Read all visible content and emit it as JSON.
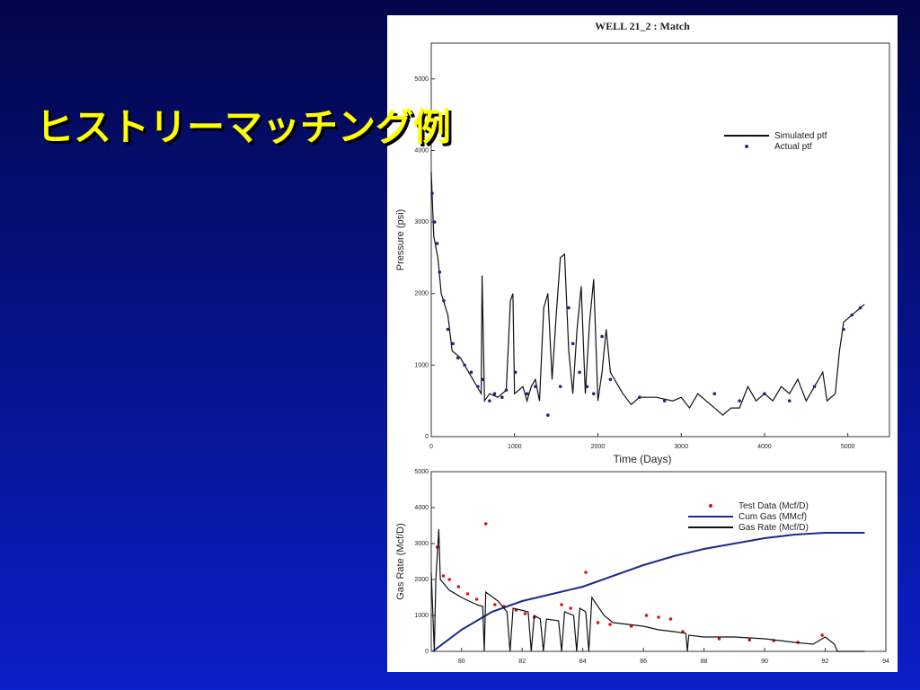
{
  "slide": {
    "title": "ヒストリーマッチング例"
  },
  "chart_data": [
    {
      "type": "line",
      "title": "WELL 21_2 : Match",
      "xlabel": "Time (Days)",
      "ylabel": "Pressure (psi)",
      "xlim": [
        0,
        5500
      ],
      "xticks": [
        0,
        1000,
        2000,
        3000,
        4000,
        5000
      ],
      "ylim": [
        0,
        5500
      ],
      "yticks": [
        0,
        1000,
        2000,
        3000,
        4000,
        5000
      ],
      "grid": false,
      "legend": "upper right",
      "series": [
        {
          "name": "Simulated ptf",
          "type": "line",
          "color": "#111111",
          "x": [
            0,
            30,
            80,
            120,
            200,
            250,
            350,
            450,
            550,
            600,
            610,
            640,
            700,
            800,
            900,
            950,
            980,
            1000,
            1100,
            1150,
            1200,
            1250,
            1300,
            1350,
            1400,
            1450,
            1500,
            1550,
            1600,
            1650,
            1700,
            1750,
            1800,
            1850,
            1900,
            1950,
            2000,
            2050,
            2100,
            2150,
            2200,
            2300,
            2400,
            2500,
            2700,
            2900,
            3000,
            3100,
            3200,
            3300,
            3400,
            3500,
            3600,
            3700,
            3800,
            3900,
            4000,
            4100,
            4200,
            4300,
            4400,
            4500,
            4600,
            4700,
            4750,
            4850,
            4900,
            4950,
            5050,
            5200
          ],
          "values": [
            3700,
            2800,
            2500,
            2000,
            1700,
            1200,
            1100,
            900,
            700,
            600,
            2250,
            500,
            600,
            550,
            650,
            1900,
            2000,
            600,
            700,
            500,
            700,
            800,
            500,
            1800,
            2000,
            800,
            1700,
            2500,
            2550,
            1200,
            600,
            1500,
            2100,
            600,
            1600,
            2200,
            500,
            900,
            1500,
            900,
            800,
            600,
            450,
            550,
            550,
            500,
            550,
            400,
            600,
            500,
            400,
            300,
            400,
            400,
            700,
            500,
            600,
            500,
            700,
            600,
            800,
            500,
            700,
            900,
            500,
            600,
            1200,
            1600,
            1700,
            1850
          ]
        },
        {
          "name": "Actual ptf",
          "type": "scatter",
          "color": "#1a2a80",
          "x": [
            10,
            40,
            70,
            100,
            150,
            200,
            260,
            320,
            400,
            480,
            560,
            620,
            700,
            760,
            850,
            900,
            1010,
            1150,
            1250,
            1400,
            1550,
            1650,
            1700,
            1780,
            1870,
            1950,
            2050,
            2150,
            2500,
            2800,
            3400,
            3700,
            4000,
            4300,
            4600,
            4950,
            5050,
            5150
          ],
          "values": [
            3400,
            3000,
            2700,
            2300,
            1900,
            1500,
            1300,
            1100,
            1000,
            900,
            700,
            800,
            500,
            600,
            550,
            650,
            900,
            600,
            700,
            300,
            700,
            1800,
            1300,
            900,
            700,
            600,
            1400,
            800,
            550,
            500,
            600,
            500,
            600,
            500,
            700,
            1500,
            1700,
            1800
          ]
        }
      ]
    },
    {
      "type": "line",
      "ylabel": "Gas Rate (Mcf/D)",
      "xlim": [
        79,
        94
      ],
      "xticks": [
        80,
        82,
        84,
        86,
        88,
        90,
        92,
        94
      ],
      "ylim": [
        0,
        5000
      ],
      "yticks": [
        0,
        1000,
        2000,
        3000,
        4000,
        5000
      ],
      "grid": false,
      "legend": "upper right",
      "series": [
        {
          "name": "Test Data (Mcf/D)",
          "type": "scatter",
          "color": "#e01010",
          "x": [
            79.2,
            79.4,
            79.6,
            79.9,
            80.2,
            80.5,
            80.8,
            81.1,
            81.4,
            81.8,
            82.1,
            82.4,
            83.3,
            83.6,
            84.1,
            84.5,
            84.9,
            85.6,
            86.1,
            86.5,
            86.9,
            87.3,
            88.5,
            89.5,
            90.3,
            91.1,
            91.9
          ],
          "values": [
            2900,
            2100,
            2000,
            1800,
            1600,
            1450,
            3550,
            1300,
            1250,
            1150,
            1050,
            950,
            1300,
            1200,
            2200,
            800,
            750,
            700,
            1000,
            950,
            900,
            550,
            350,
            320,
            300,
            250,
            450
          ]
        },
        {
          "name": "Cum Gas (MMcf)",
          "type": "line",
          "color": "#1a2a90",
          "x": [
            79.05,
            80,
            81,
            82,
            83,
            84,
            85,
            86,
            87,
            88,
            89,
            90,
            91,
            92,
            92.4,
            93.3
          ],
          "values": [
            0,
            600,
            1100,
            1400,
            1600,
            1800,
            2100,
            2400,
            2650,
            2850,
            3000,
            3150,
            3250,
            3300,
            3300,
            3300
          ]
        },
        {
          "name": "Gas Rate (Mcf/D)",
          "type": "line",
          "color": "#111111",
          "x": [
            79.0,
            79.1,
            79.15,
            79.25,
            79.3,
            79.6,
            80,
            80.5,
            80.7,
            80.75,
            80.8,
            81.2,
            81.5,
            81.6,
            81.7,
            82.2,
            82.3,
            82.4,
            82.6,
            82.7,
            82.8,
            83.2,
            83.3,
            83.4,
            83.7,
            83.8,
            83.9,
            84.1,
            84.2,
            84.3,
            84.7,
            85,
            86,
            86.5,
            87,
            87.4,
            87.45,
            87.5,
            88,
            89,
            90,
            91,
            91.6,
            92,
            92.3,
            92.4,
            93.3
          ],
          "values": [
            2200,
            0,
            2000,
            3400,
            2000,
            1700,
            1500,
            1300,
            1250,
            0,
            1650,
            1400,
            1100,
            0,
            1200,
            1100,
            0,
            1000,
            900,
            0,
            900,
            850,
            0,
            1100,
            1000,
            0,
            1200,
            1100,
            0,
            1500,
            1000,
            800,
            700,
            600,
            550,
            500,
            0,
            450,
            400,
            400,
            350,
            250,
            200,
            400,
            200,
            0,
            0
          ]
        }
      ]
    }
  ]
}
